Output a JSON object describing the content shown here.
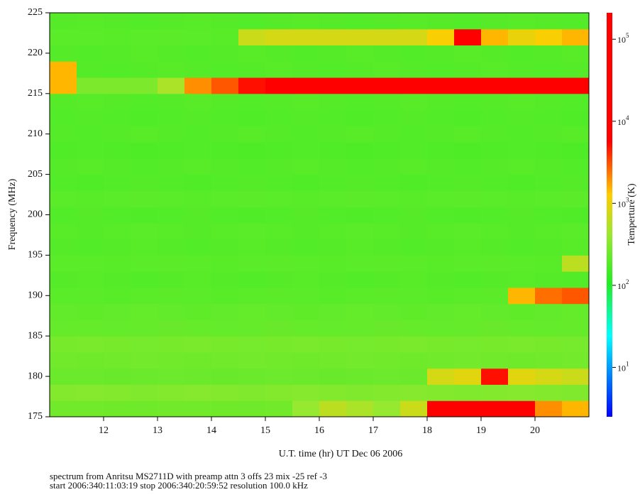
{
  "chart_data": {
    "type": "heatmap",
    "ylabel": "Frequency (MHz)",
    "xlabel": "U.T. time (hr) UT Dec 06 2006",
    "colorbar_label": "Temperture (K)",
    "notes": [
      "spectrum from Anritsu MS2711D with preamp attn 3 offs 23 mix -25 ref -3",
      "start 2006:340:11:03:19 stop 2006:340:20:59:52 resolution 100.0 kHz"
    ],
    "xlim": [
      11,
      21
    ],
    "ylim": [
      175,
      225
    ],
    "xticks": [
      12,
      13,
      14,
      15,
      16,
      17,
      18,
      19,
      20
    ],
    "yticks": [
      175,
      180,
      185,
      190,
      195,
      200,
      205,
      210,
      215,
      220,
      225
    ],
    "xbins": [
      11,
      11.5,
      12,
      12.5,
      13,
      13.5,
      14,
      14.5,
      15,
      15.5,
      16,
      16.5,
      17,
      17.5,
      18,
      18.5,
      19,
      19.5,
      20,
      20.5,
      21
    ],
    "ybins": [
      175,
      177,
      179,
      181,
      183,
      185,
      187,
      189,
      191,
      193,
      195,
      197,
      199,
      201,
      203,
      205,
      207,
      209,
      211,
      213,
      215,
      217,
      219,
      221,
      223,
      225
    ],
    "clim": [
      2.5,
      210000
    ],
    "color_scale": "log",
    "cticks": [
      {
        "value": 10,
        "label": "10",
        "exponent": "1"
      },
      {
        "value": 100,
        "label": "10",
        "exponent": "2"
      },
      {
        "value": 1000,
        "label": "10",
        "exponent": "3"
      },
      {
        "value": 10000,
        "label": "10",
        "exponent": "4"
      },
      {
        "value": 100000,
        "label": "10",
        "exponent": "5"
      }
    ],
    "colormap": [
      [
        0,
        "#0000ff"
      ],
      [
        0.2,
        "#00ffff"
      ],
      [
        0.33,
        "#22ee22"
      ],
      [
        0.45,
        "#99e830"
      ],
      [
        0.55,
        "#ffcc00"
      ],
      [
        0.68,
        "#ff0000"
      ],
      [
        1,
        "#ff0000"
      ]
    ],
    "z": [
      [
        260,
        260,
        250,
        250,
        260,
        260,
        250,
        250,
        260,
        400,
        600,
        500,
        400,
        700,
        6000,
        9000,
        20000,
        8000,
        2000,
        1500
      ],
      [
        320,
        330,
        320,
        310,
        320,
        330,
        320,
        310,
        320,
        330,
        320,
        310,
        320,
        330,
        320,
        310,
        320,
        330,
        320,
        310
      ],
      [
        240,
        240,
        235,
        240,
        245,
        240,
        235,
        240,
        245,
        240,
        235,
        240,
        245,
        240,
        800,
        900,
        5000,
        900,
        800,
        700
      ],
      [
        260,
        255,
        260,
        265,
        260,
        255,
        260,
        265,
        260,
        255,
        260,
        265,
        260,
        255,
        260,
        265,
        260,
        255,
        260,
        265
      ],
      [
        280,
        285,
        280,
        275,
        280,
        285,
        280,
        275,
        280,
        285,
        280,
        275,
        280,
        285,
        280,
        275,
        280,
        285,
        280,
        275
      ],
      [
        230,
        230,
        225,
        230,
        235,
        230,
        225,
        230,
        235,
        230,
        225,
        230,
        235,
        230,
        225,
        230,
        235,
        230,
        225,
        230
      ],
      [
        220,
        215,
        220,
        225,
        220,
        215,
        220,
        225,
        220,
        215,
        220,
        225,
        220,
        215,
        220,
        225,
        220,
        215,
        220,
        225
      ],
      [
        200,
        200,
        195,
        200,
        205,
        200,
        195,
        200,
        205,
        200,
        195,
        200,
        205,
        200,
        195,
        200,
        205,
        1500,
        2500,
        3000
      ],
      [
        190,
        195,
        190,
        185,
        190,
        195,
        190,
        185,
        190,
        195,
        190,
        185,
        190,
        195,
        190,
        185,
        190,
        195,
        190,
        185
      ],
      [
        200,
        200,
        195,
        200,
        205,
        200,
        195,
        200,
        205,
        200,
        195,
        200,
        205,
        200,
        195,
        200,
        205,
        200,
        195,
        600
      ],
      [
        190,
        185,
        190,
        195,
        190,
        185,
        190,
        195,
        190,
        185,
        190,
        195,
        190,
        185,
        190,
        195,
        190,
        185,
        190,
        195
      ],
      [
        195,
        190,
        195,
        200,
        195,
        190,
        195,
        200,
        195,
        190,
        195,
        200,
        195,
        190,
        195,
        200,
        195,
        190,
        195,
        200
      ],
      [
        185,
        190,
        185,
        180,
        185,
        190,
        185,
        180,
        185,
        190,
        185,
        180,
        185,
        190,
        185,
        180,
        185,
        190,
        185,
        180
      ],
      [
        200,
        195,
        200,
        205,
        200,
        195,
        200,
        205,
        200,
        195,
        200,
        205,
        200,
        195,
        200,
        205,
        200,
        195,
        200,
        205
      ],
      [
        185,
        180,
        185,
        190,
        185,
        180,
        185,
        190,
        185,
        180,
        185,
        190,
        185,
        180,
        185,
        190,
        185,
        180,
        185,
        190
      ],
      [
        190,
        195,
        190,
        185,
        190,
        195,
        190,
        185,
        190,
        195,
        190,
        185,
        190,
        195,
        190,
        185,
        190,
        195,
        190,
        185
      ],
      [
        180,
        185,
        180,
        175,
        180,
        185,
        180,
        175,
        180,
        185,
        180,
        175,
        180,
        185,
        180,
        175,
        180,
        185,
        180,
        175
      ],
      [
        190,
        185,
        190,
        195,
        190,
        185,
        190,
        195,
        190,
        185,
        190,
        195,
        190,
        185,
        190,
        195,
        190,
        185,
        190,
        195
      ],
      [
        185,
        190,
        185,
        180,
        185,
        190,
        185,
        180,
        185,
        190,
        185,
        180,
        185,
        190,
        185,
        180,
        185,
        190,
        185,
        180
      ],
      [
        190,
        195,
        190,
        185,
        190,
        195,
        190,
        185,
        190,
        195,
        190,
        185,
        190,
        195,
        190,
        185,
        190,
        195,
        190,
        185
      ],
      [
        1500,
        300,
        300,
        300,
        500,
        2000,
        3000,
        5000,
        6000,
        8000,
        10000,
        12000,
        8000,
        6000,
        12000,
        20000,
        15000,
        8000,
        10000,
        8000
      ],
      [
        1500,
        190,
        185,
        190,
        195,
        190,
        185,
        190,
        195,
        190,
        185,
        190,
        195,
        190,
        185,
        190,
        195,
        190,
        185,
        190
      ],
      [
        190,
        185,
        190,
        195,
        190,
        185,
        190,
        195,
        190,
        185,
        190,
        195,
        190,
        185,
        190,
        195,
        190,
        185,
        190,
        195
      ],
      [
        200,
        200,
        195,
        200,
        205,
        200,
        195,
        700,
        800,
        800,
        800,
        800,
        800,
        800,
        1200,
        30000,
        1500,
        1000,
        1200,
        1500
      ],
      [
        190,
        195,
        190,
        185,
        190,
        195,
        190,
        185,
        190,
        195,
        190,
        185,
        190,
        195,
        190,
        185,
        190,
        195,
        190,
        185
      ]
    ]
  }
}
